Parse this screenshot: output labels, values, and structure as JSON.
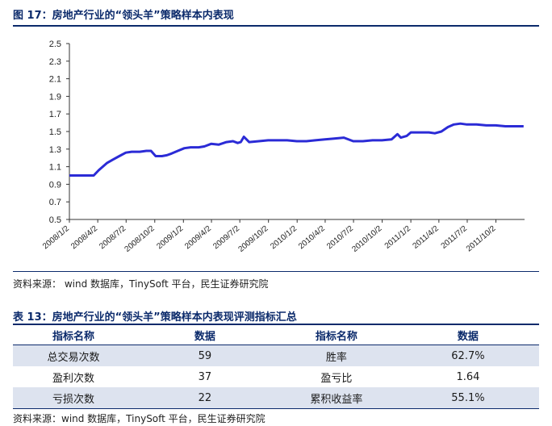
{
  "figure": {
    "title": "图 17：房地产行业的“领头羊”策略样本内表现",
    "source": "资料来源： wind 数据库，TinySoft 平台，民生证券研究院"
  },
  "chart_data": {
    "type": "line",
    "title": "",
    "xlabel": "",
    "ylabel": "",
    "ylim": [
      0.5,
      2.5
    ],
    "y_ticks": [
      "2.5",
      "2.3",
      "2.1",
      "1.9",
      "1.7",
      "1.5",
      "1.3",
      "1.1",
      "0.9",
      "0.7",
      "0.5"
    ],
    "x_ticks": [
      "2008/1/2",
      "2008/4/2",
      "2008/7/2",
      "2008/10/2",
      "2009/1/2",
      "2009/4/2",
      "2009/7/2",
      "2009/10/2",
      "2010/1/2",
      "2010/4/2",
      "2010/7/2",
      "2010/10/2",
      "2011/1/2",
      "2011/4/2",
      "2011/7/2",
      "2011/10/2"
    ],
    "x_range": [
      "2008/1/2",
      "2012/1/2"
    ],
    "grid": false,
    "legend": "none",
    "line_color": "#2b2bd6",
    "series": [
      {
        "x": [
          "2008/1/2",
          "2008/3/20",
          "2008/4/5",
          "2008/5/1",
          "2008/5/20",
          "2008/6/10",
          "2008/7/1",
          "2008/7/20",
          "2008/8/15",
          "2008/9/5",
          "2008/9/20",
          "2008/10/5",
          "2008/10/25",
          "2008/11/10",
          "2008/11/25",
          "2008/12/15",
          "2009/1/5",
          "2009/1/25",
          "2009/2/20",
          "2009/3/10",
          "2009/4/1",
          "2009/4/25",
          "2009/5/20",
          "2009/6/10",
          "2009/6/25",
          "2009/7/5",
          "2009/7/15",
          "2009/8/1",
          "2009/9/1",
          "2009/10/1",
          "2009/11/1",
          "2009/12/1",
          "2010/1/1",
          "2010/2/1",
          "2010/3/1",
          "2010/4/1",
          "2010/5/1",
          "2010/6/1",
          "2010/7/1",
          "2010/8/1",
          "2010/9/1",
          "2010/10/1",
          "2010/11/1",
          "2010/11/20",
          "2010/12/1",
          "2010/12/20",
          "2011/1/2",
          "2011/2/1",
          "2011/3/1",
          "2011/3/20",
          "2011/4/10",
          "2011/5/1",
          "2011/5/20",
          "2011/6/10",
          "2011/7/1",
          "2011/8/1",
          "2011/9/1",
          "2011/10/1",
          "2011/11/1",
          "2011/12/1",
          "2011/12/30"
        ],
        "y": [
          1.0,
          1.0,
          1.06,
          1.14,
          1.18,
          1.22,
          1.26,
          1.27,
          1.27,
          1.28,
          1.28,
          1.22,
          1.22,
          1.23,
          1.25,
          1.28,
          1.31,
          1.32,
          1.32,
          1.33,
          1.36,
          1.35,
          1.38,
          1.39,
          1.37,
          1.38,
          1.44,
          1.38,
          1.39,
          1.4,
          1.4,
          1.4,
          1.39,
          1.39,
          1.4,
          1.41,
          1.42,
          1.43,
          1.39,
          1.39,
          1.4,
          1.4,
          1.41,
          1.47,
          1.43,
          1.45,
          1.49,
          1.49,
          1.49,
          1.48,
          1.5,
          1.55,
          1.58,
          1.59,
          1.58,
          1.58,
          1.57,
          1.57,
          1.56,
          1.56,
          1.56
        ]
      }
    ]
  },
  "table": {
    "title": "表 13：房地产行业的“领头羊”策略样本内表现评测指标汇总",
    "headers": [
      "指标名称",
      "数据",
      "指标名称",
      "数据"
    ],
    "rows": [
      [
        "总交易次数",
        "59",
        "胜率",
        "62.7%"
      ],
      [
        "盈利次数",
        "37",
        "盈亏比",
        "1.64"
      ],
      [
        "亏损次数",
        "22",
        "累积收益率",
        "55.1%"
      ]
    ],
    "source": "资料来源：wind 数据库，TinySoft 平台，民生证券研究院"
  }
}
